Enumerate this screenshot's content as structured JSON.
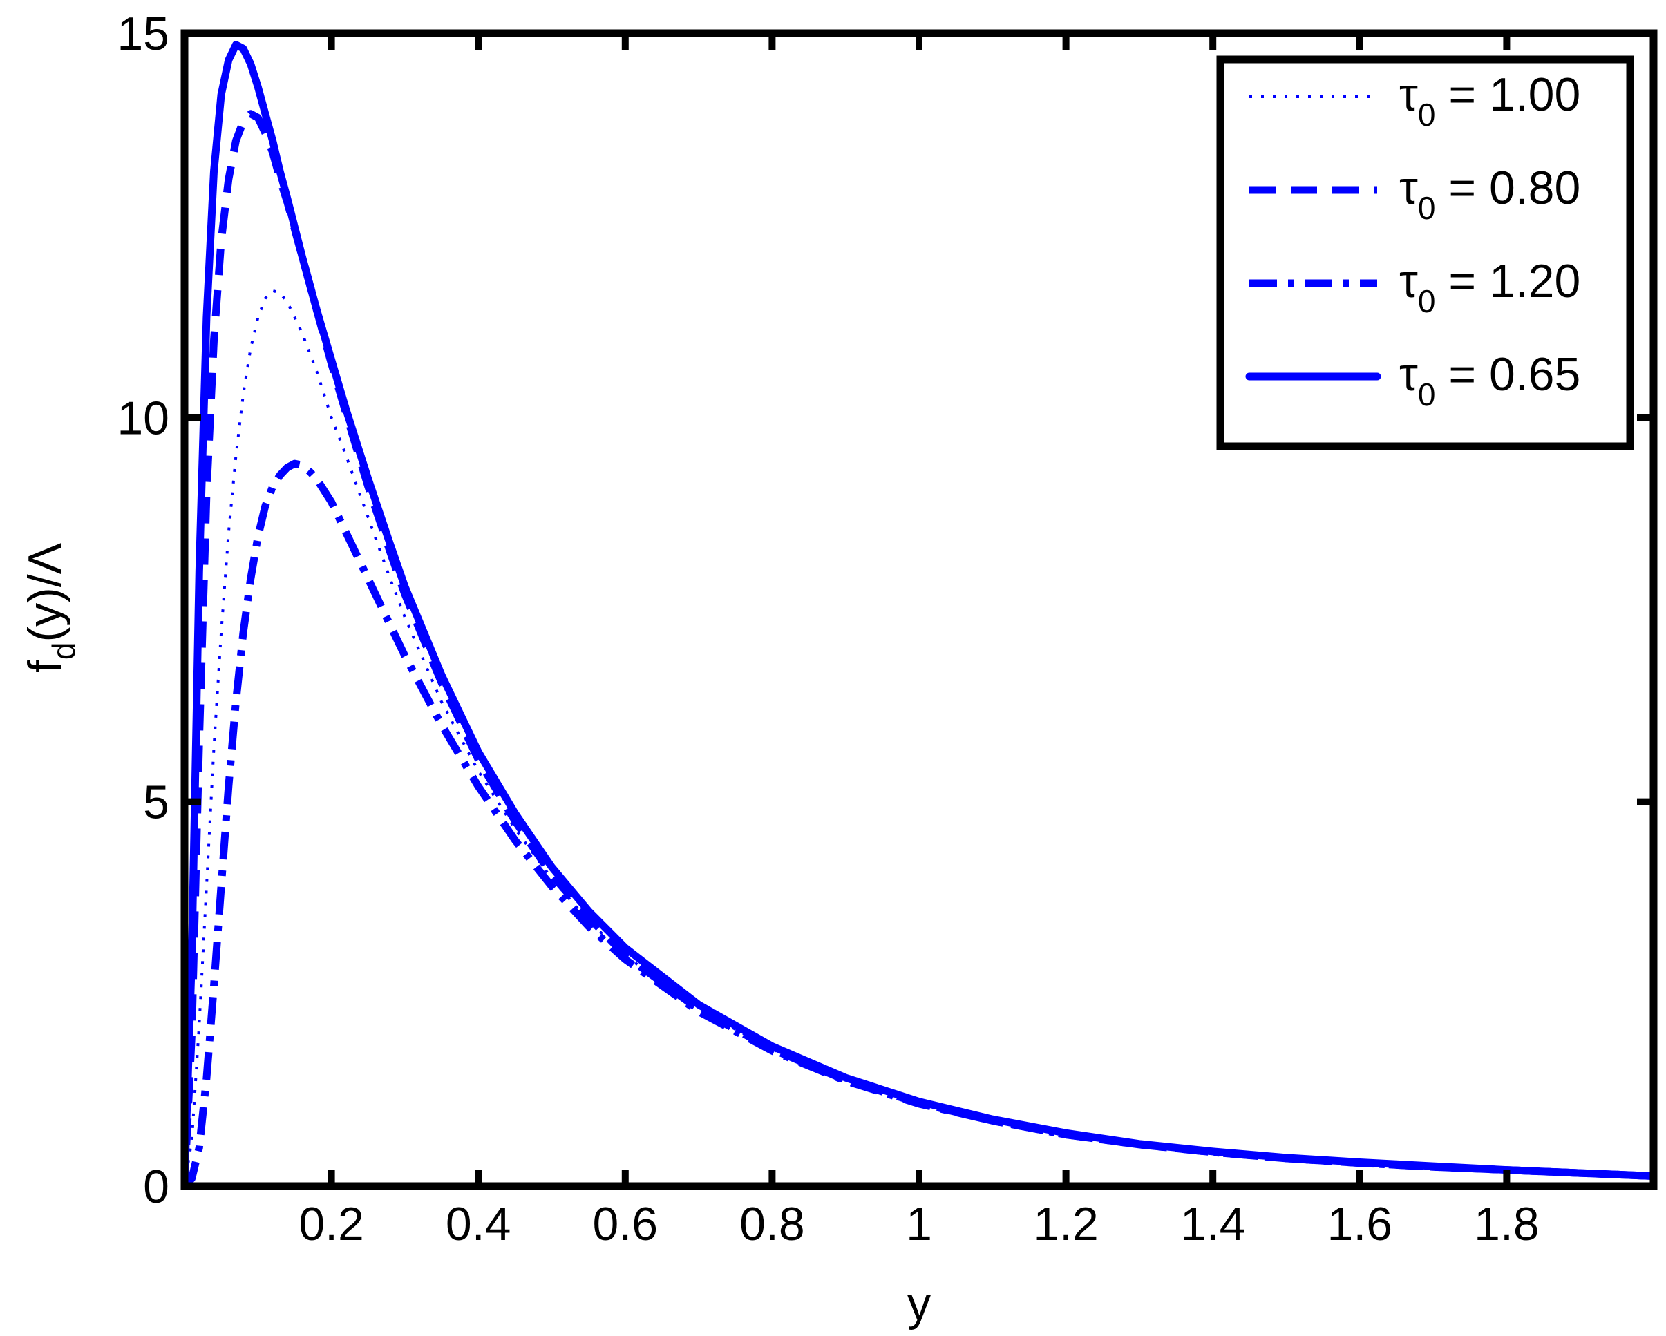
{
  "chart_data": {
    "type": "line",
    "title": "",
    "xlabel": "y",
    "ylabel_main": "f",
    "ylabel_sub": "d",
    "ylabel_tail": "(y)/Λ",
    "xlim": [
      0,
      2.0
    ],
    "ylim": [
      0,
      15
    ],
    "xticks": [
      {
        "value": 0.2,
        "label": "0.2"
      },
      {
        "value": 0.4,
        "label": "0.4"
      },
      {
        "value": 0.6,
        "label": "0.6"
      },
      {
        "value": 0.8,
        "label": "0.8"
      },
      {
        "value": 1.0,
        "label": "1"
      },
      {
        "value": 1.2,
        "label": "1.2"
      },
      {
        "value": 1.4,
        "label": "1.4"
      },
      {
        "value": 1.6,
        "label": "1.6"
      },
      {
        "value": 1.8,
        "label": "1.8"
      }
    ],
    "yticks": [
      {
        "value": 0,
        "label": "0"
      },
      {
        "value": 5,
        "label": "5"
      },
      {
        "value": 10,
        "label": "10"
      },
      {
        "value": 15,
        "label": "15"
      }
    ],
    "grid": false,
    "legend_position": "top-right",
    "line_color": "#0000ff",
    "series": [
      {
        "name": "τ0 = 1.00",
        "legend_symbol": "τ",
        "legend_sub": "0",
        "legend_value": " = 1.00",
        "style": "dotted",
        "x": [
          0.0,
          0.01,
          0.02,
          0.03,
          0.04,
          0.05,
          0.06,
          0.07,
          0.08,
          0.09,
          0.1,
          0.11,
          0.12,
          0.13,
          0.14,
          0.16,
          0.18,
          0.2,
          0.22,
          0.25,
          0.28,
          0.3,
          0.35,
          0.4,
          0.45,
          0.5,
          0.55,
          0.6,
          0.7,
          0.8,
          0.9,
          1.0,
          1.1,
          1.2,
          1.3,
          1.4,
          1.5,
          1.6,
          1.7,
          1.8,
          1.9,
          2.0
        ],
        "y": [
          0.0,
          0.6,
          2.1,
          3.9,
          5.7,
          7.2,
          8.5,
          9.5,
          10.3,
          10.9,
          11.3,
          11.55,
          11.65,
          11.62,
          11.5,
          11.1,
          10.6,
          10.0,
          9.5,
          8.7,
          7.9,
          7.4,
          6.3,
          5.4,
          4.65,
          4.0,
          3.45,
          3.0,
          2.3,
          1.78,
          1.38,
          1.08,
          0.85,
          0.67,
          0.54,
          0.44,
          0.36,
          0.3,
          0.25,
          0.21,
          0.17,
          0.13
        ]
      },
      {
        "name": "τ0 = 0.80",
        "legend_symbol": "τ",
        "legend_sub": "0",
        "legend_value": " = 0.80",
        "style": "dashed",
        "x": [
          0.0,
          0.01,
          0.02,
          0.03,
          0.04,
          0.05,
          0.06,
          0.07,
          0.08,
          0.09,
          0.1,
          0.11,
          0.12,
          0.13,
          0.14,
          0.16,
          0.18,
          0.2,
          0.22,
          0.25,
          0.28,
          0.3,
          0.35,
          0.4,
          0.45,
          0.5,
          0.55,
          0.6,
          0.7,
          0.8,
          0.9,
          1.0,
          1.1,
          1.2,
          1.3,
          1.4,
          1.5,
          1.6,
          1.7,
          1.8,
          1.9,
          2.0
        ],
        "y": [
          0.0,
          2.0,
          5.8,
          9.0,
          11.0,
          12.3,
          13.1,
          13.6,
          13.85,
          13.95,
          13.9,
          13.7,
          13.45,
          13.1,
          12.8,
          12.1,
          11.4,
          10.7,
          10.05,
          9.1,
          8.25,
          7.7,
          6.55,
          5.55,
          4.75,
          4.05,
          3.5,
          3.0,
          2.3,
          1.78,
          1.38,
          1.08,
          0.85,
          0.67,
          0.54,
          0.44,
          0.36,
          0.3,
          0.25,
          0.21,
          0.17,
          0.13
        ]
      },
      {
        "name": "τ0 = 1.20",
        "legend_symbol": "τ",
        "legend_sub": "0",
        "legend_value": " = 1.20",
        "style": "dashdot",
        "x": [
          0.0,
          0.01,
          0.02,
          0.03,
          0.04,
          0.05,
          0.06,
          0.07,
          0.08,
          0.09,
          0.1,
          0.11,
          0.12,
          0.13,
          0.14,
          0.15,
          0.16,
          0.17,
          0.18,
          0.2,
          0.22,
          0.25,
          0.28,
          0.3,
          0.35,
          0.4,
          0.45,
          0.5,
          0.55,
          0.6,
          0.7,
          0.8,
          0.9,
          1.0,
          1.1,
          1.2,
          1.3,
          1.4,
          1.5,
          1.6,
          1.7,
          1.8,
          1.9,
          2.0
        ],
        "y": [
          0.0,
          0.1,
          0.5,
          1.4,
          2.6,
          3.9,
          5.2,
          6.3,
          7.2,
          7.9,
          8.45,
          8.85,
          9.1,
          9.25,
          9.35,
          9.4,
          9.38,
          9.3,
          9.2,
          8.9,
          8.5,
          7.9,
          7.3,
          6.9,
          6.0,
          5.2,
          4.5,
          3.9,
          3.38,
          2.95,
          2.27,
          1.76,
          1.37,
          1.07,
          0.85,
          0.67,
          0.54,
          0.44,
          0.36,
          0.3,
          0.25,
          0.21,
          0.17,
          0.13
        ]
      },
      {
        "name": "τ0 = 0.65",
        "legend_symbol": "τ",
        "legend_sub": "0",
        "legend_value": " = 0.65",
        "style": "solid",
        "x": [
          0.0,
          0.01,
          0.02,
          0.03,
          0.04,
          0.05,
          0.06,
          0.07,
          0.08,
          0.09,
          0.1,
          0.11,
          0.12,
          0.13,
          0.14,
          0.16,
          0.18,
          0.2,
          0.22,
          0.25,
          0.28,
          0.3,
          0.35,
          0.4,
          0.45,
          0.5,
          0.55,
          0.6,
          0.7,
          0.8,
          0.9,
          1.0,
          1.1,
          1.2,
          1.3,
          1.4,
          1.5,
          1.6,
          1.7,
          1.8,
          1.9,
          2.0
        ],
        "y": [
          0.0,
          3.0,
          8.0,
          11.3,
          13.2,
          14.2,
          14.65,
          14.85,
          14.8,
          14.6,
          14.3,
          13.95,
          13.6,
          13.2,
          12.85,
          12.1,
          11.4,
          10.75,
          10.1,
          9.2,
          8.35,
          7.8,
          6.65,
          5.65,
          4.85,
          4.15,
          3.58,
          3.1,
          2.36,
          1.82,
          1.41,
          1.1,
          0.87,
          0.69,
          0.55,
          0.45,
          0.37,
          0.31,
          0.26,
          0.21,
          0.17,
          0.13
        ]
      }
    ]
  }
}
